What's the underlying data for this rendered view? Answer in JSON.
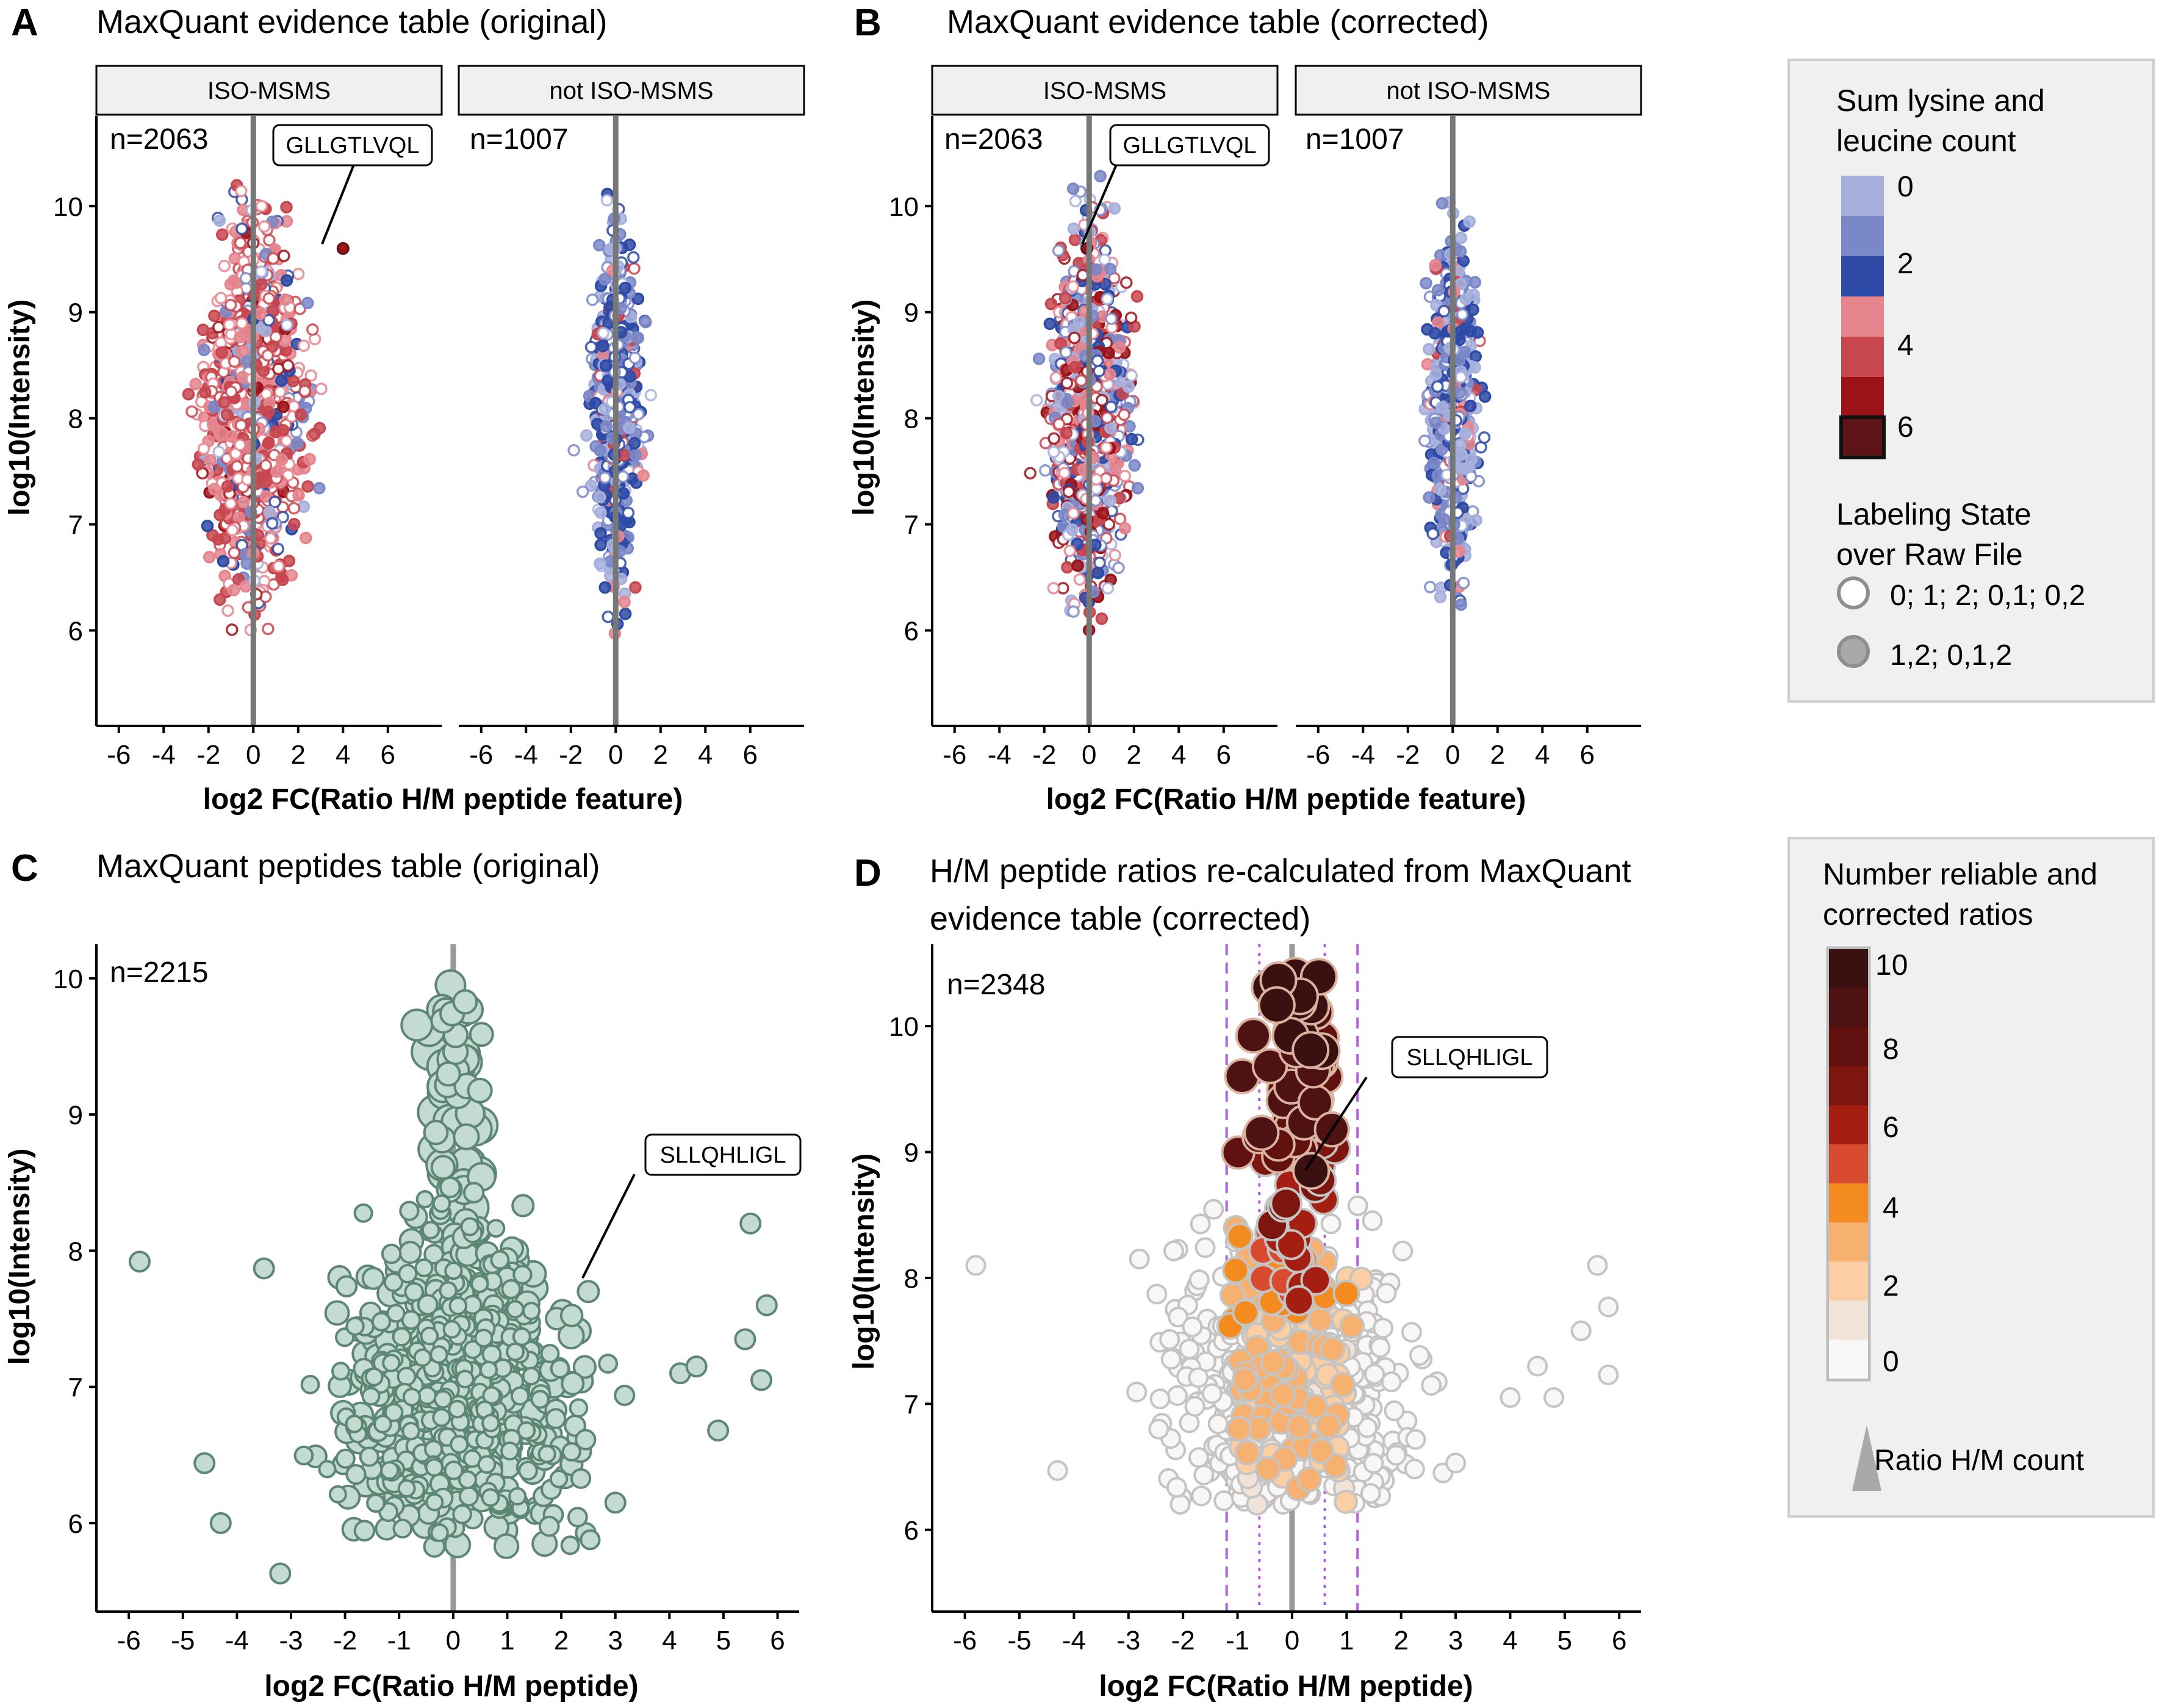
{
  "chart_data": [
    {
      "panel": "A",
      "type": "scatter",
      "title": "MaxQuant evidence table (original)",
      "xlabel": "log2 FC(Ratio H/M peptide feature)",
      "ylabel": "log10(Intensity)",
      "xlim": [
        -7,
        8.4
      ],
      "ylim": [
        5.1,
        10.85
      ],
      "xticks": [
        -6,
        -4,
        -2,
        0,
        2,
        4,
        6
      ],
      "yticks": [
        6,
        7,
        8,
        9,
        10
      ],
      "facets": [
        {
          "label": "ISO-MSMS",
          "n": "n=2063",
          "annotation": {
            "text": "GLLGTLVQL",
            "x": 4.0,
            "y": 9.6
          },
          "dominant": "red"
        },
        {
          "label": "not ISO-MSMS",
          "n": "n=1007",
          "dominant": "blue"
        }
      ]
    },
    {
      "panel": "B",
      "type": "scatter",
      "title": "MaxQuant evidence table (corrected)",
      "xlabel": "log2 FC(Ratio H/M peptide feature)",
      "ylabel": "log10(Intensity)",
      "xlim": [
        -7,
        8.4
      ],
      "ylim": [
        5.1,
        10.85
      ],
      "xticks": [
        -6,
        -4,
        -2,
        0,
        2,
        4,
        6
      ],
      "yticks": [
        6,
        7,
        8,
        9,
        10
      ],
      "facets": [
        {
          "label": "ISO-MSMS",
          "n": "n=2063",
          "annotation": {
            "text": "GLLGTLVQL",
            "x": -0.1,
            "y": 9.6
          },
          "dominant": "mixed"
        },
        {
          "label": "not ISO-MSMS",
          "n": "n=1007",
          "dominant": "blue"
        }
      ]
    },
    {
      "panel": "C",
      "type": "scatter",
      "title": "MaxQuant peptides table (original)",
      "xlabel": "log2 FC(Ratio H/M peptide)",
      "ylabel": "log10(Intensity)",
      "n": "n=2215",
      "xlim": [
        -6.6,
        6.4
      ],
      "ylim": [
        5.35,
        10.25
      ],
      "xticks": [
        -6,
        -5,
        -4,
        -3,
        -2,
        -1,
        0,
        1,
        2,
        3,
        4,
        5,
        6
      ],
      "yticks": [
        6,
        7,
        8,
        9,
        10
      ],
      "annotation": {
        "text": "SLLQHLIGL",
        "x": 2.5,
        "y": 7.7
      },
      "outliers": [
        [
          -5.8,
          7.92
        ],
        [
          -3.5,
          7.87
        ],
        [
          -4.6,
          6.44
        ],
        [
          -4.3,
          6.0
        ],
        [
          -3.2,
          5.63
        ],
        [
          5.5,
          8.2
        ],
        [
          5.8,
          7.6
        ],
        [
          5.4,
          7.35
        ],
        [
          5.7,
          7.05
        ],
        [
          4.9,
          6.68
        ],
        [
          4.2,
          7.1
        ],
        [
          4.5,
          7.15
        ],
        [
          3.0,
          6.15
        ]
      ]
    },
    {
      "panel": "D",
      "type": "scatter",
      "title": "H/M peptide ratios re-calculated from MaxQuant evidence table (corrected)",
      "title_lines": [
        "H/M peptide ratios re-calculated from MaxQuant",
        "evidence table (corrected)"
      ],
      "xlabel": "log2 FC(Ratio H/M peptide)",
      "ylabel": "log10(Intensity)",
      "n": "n=2348",
      "xlim": [
        -6.6,
        6.4
      ],
      "ylim": [
        5.35,
        10.65
      ],
      "xticks": [
        -6,
        -5,
        -4,
        -3,
        -2,
        -1,
        0,
        1,
        2,
        3,
        4,
        5,
        6
      ],
      "yticks": [
        6,
        7,
        8,
        9,
        10
      ],
      "annotation": {
        "text": "SLLQHLIGL",
        "x": 0.35,
        "y": 8.85
      },
      "reference_lines": {
        "dashed": [
          -1.2,
          1.2
        ],
        "dotted": [
          -0.6,
          0.6
        ]
      },
      "outliers": [
        [
          -5.8,
          8.1
        ],
        [
          -4.3,
          6.47
        ],
        [
          -2.8,
          8.15
        ],
        [
          5.6,
          8.1
        ],
        [
          5.8,
          7.77
        ],
        [
          5.3,
          7.58
        ],
        [
          5.8,
          7.23
        ],
        [
          4.8,
          7.05
        ],
        [
          4.0,
          7.05
        ],
        [
          3.0,
          6.53
        ],
        [
          4.5,
          7.3
        ]
      ]
    }
  ],
  "panel_letters": [
    "A",
    "B",
    "C",
    "D"
  ],
  "legend_top": {
    "title_lines": [
      "Sum lysine and",
      "leucine count"
    ],
    "tick_labels": [
      "0",
      "2",
      "4",
      "6"
    ],
    "keys": [
      {
        "value": 0,
        "color": "#a7b0dd"
      },
      {
        "value": 1,
        "color": "#7b88c8"
      },
      {
        "value": 2,
        "color": "#2c4aa6"
      },
      {
        "value": 3,
        "color": "#e5868e"
      },
      {
        "value": 4,
        "color": "#c8474f"
      },
      {
        "value": 5,
        "color": "#9b1217"
      },
      {
        "value": 6,
        "color": "#5e1416"
      }
    ],
    "shape_title_lines": [
      "Labeling State",
      "over Raw File"
    ],
    "shape_items": [
      {
        "label": "0; 1; 2;  0,1; 0,2",
        "style": "open"
      },
      {
        "label": "1,2; 0,1,2",
        "style": "filled"
      }
    ]
  },
  "legend_bottom": {
    "title_lines": [
      "Number reliable and",
      "corrected ratios"
    ],
    "tick_labels": [
      "10",
      "8",
      "6",
      "4",
      "2",
      "0"
    ],
    "keys": [
      {
        "value": 10,
        "color": "#3a1010"
      },
      {
        "value": 9,
        "color": "#4f1212"
      },
      {
        "value": 8,
        "color": "#611210"
      },
      {
        "value": 7,
        "color": "#7d160e"
      },
      {
        "value": 6,
        "color": "#a51e12"
      },
      {
        "value": 5,
        "color": "#d94b2f"
      },
      {
        "value": 4,
        "color": "#f48b1f"
      },
      {
        "value": 3,
        "color": "#f6b06f"
      },
      {
        "value": 2,
        "color": "#fbcfa3"
      },
      {
        "value": 1,
        "color": "#f2e3d8"
      },
      {
        "value": 0,
        "color": "#f9f7f5"
      }
    ],
    "size_label": "Ratio H/M count"
  },
  "colors": {
    "axis": "#000000",
    "zero_line": "#777777",
    "strip_fill": "#f0f0f0",
    "panel_c_fill": "#c3dbd3",
    "panel_c_stroke": "#5e8674",
    "panel_d_open_stroke": "#bdbdbd",
    "ref_line": "#b25fe3",
    "legend_bg": "#f0f0f0"
  }
}
